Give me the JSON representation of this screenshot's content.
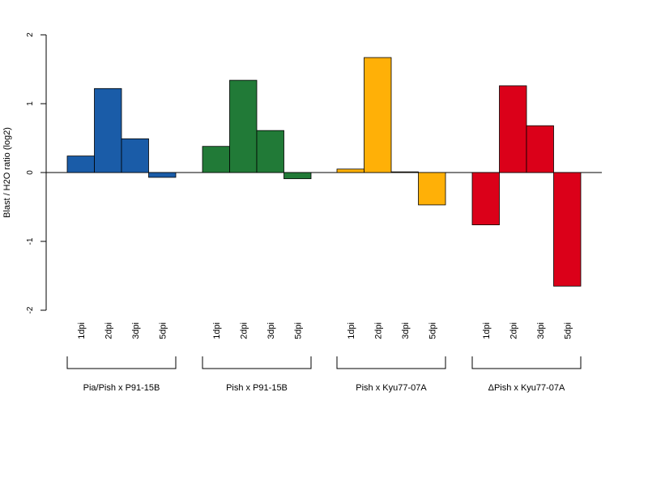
{
  "chart_data": {
    "type": "bar",
    "ylabel": "Blast / H2O ratio (log2)",
    "ylim": [
      -2,
      2
    ],
    "yticks": [
      "-2",
      "-1",
      "0",
      "1",
      "2"
    ],
    "groups": [
      {
        "name": "Pia/Pish x P91-15B",
        "color": "#1a5ca8",
        "categories": [
          "1dpi",
          "2dpi",
          "3dpi",
          "5dpi"
        ],
        "values": [
          0.24,
          1.22,
          0.49,
          -0.07
        ]
      },
      {
        "name": "Pish x P91-15B",
        "color": "#217a37",
        "categories": [
          "1dpi",
          "2dpi",
          "3dpi",
          "5dpi"
        ],
        "values": [
          0.38,
          1.34,
          0.61,
          -0.09
        ]
      },
      {
        "name": "Pish x Kyu77-07A",
        "color": "#ffb007",
        "categories": [
          "1dpi",
          "2dpi",
          "3dpi",
          "5dpi"
        ],
        "values": [
          0.05,
          1.67,
          0.01,
          -0.47
        ]
      },
      {
        "name": "ΔPish x Kyu77-07A",
        "color": "#db0019",
        "categories": [
          "1dpi",
          "2dpi",
          "3dpi",
          "5dpi"
        ],
        "values": [
          -0.76,
          1.26,
          0.68,
          -1.65
        ]
      }
    ]
  }
}
